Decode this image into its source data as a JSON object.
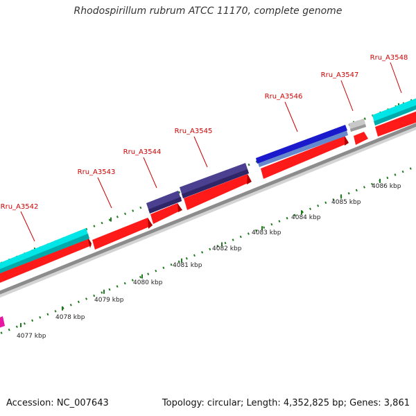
{
  "title": "Rhodospirillum rubrum ATCC 11170, complete genome",
  "footer": {
    "accession": "Accession: NC_007643",
    "summary": "Topology: circular; Length: 4,352,825 bp; Genes: 3,861"
  },
  "colors": {
    "backbone": "#8c8c8c",
    "tick": "#1f7a1f",
    "label": "#cc0000",
    "scale_label": "#222222"
  },
  "genes": [
    {
      "name": "Rru_A3542"
    },
    {
      "name": "Rru_A3543"
    },
    {
      "name": "Rru_A3544"
    },
    {
      "name": "Rru_A3545"
    },
    {
      "name": "Rru_A3546"
    },
    {
      "name": "Rru_A3547"
    },
    {
      "name": "Rru_A3548"
    }
  ],
  "scale": [
    {
      "label": "4077 kbp"
    },
    {
      "label": "4078 kbp"
    },
    {
      "label": "4079 kbp"
    },
    {
      "label": "4080 kbp"
    },
    {
      "label": "4081 kbp"
    },
    {
      "label": "4082 kbp"
    },
    {
      "label": "4083 kbp"
    },
    {
      "label": "4084 kbp"
    },
    {
      "label": "4085 kbp"
    },
    {
      "label": "4086 kbp"
    }
  ]
}
